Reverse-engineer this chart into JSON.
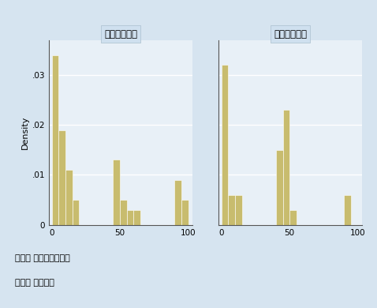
{
  "panel1_title": "直接被害なし",
  "panel2_title": "直接被害あり",
  "bar_color": "#c8bc6e",
  "background_color": "#d6e4f0",
  "plot_facecolor": "#e8f0f7",
  "title_facecolor": "#cfe0ef",
  "ylabel": "Density",
  "xlabel_note1": "横軸： 主観確率（％）",
  "xlabel_note2": "縦軸： 相対度数",
  "yticks": [
    0,
    0.01,
    0.02,
    0.03
  ],
  "ytick_labels": [
    "0",
    ".01",
    ".02",
    ".03"
  ],
  "xticks": [
    0,
    50,
    100
  ],
  "ylim": [
    0,
    0.037
  ],
  "xlim": [
    -2,
    103
  ],
  "bins": [
    0,
    5,
    10,
    15,
    20,
    25,
    30,
    35,
    40,
    45,
    50,
    55,
    60,
    65,
    70,
    75,
    80,
    85,
    90,
    95,
    100
  ],
  "panel1_heights": [
    0.034,
    0.019,
    0.011,
    0.005,
    0.0,
    0.0,
    0.0,
    0.0,
    0.0,
    0.013,
    0.005,
    0.003,
    0.003,
    0.0,
    0.0,
    0.0,
    0.0,
    0.0,
    0.009,
    0.005,
    0.0
  ],
  "panel2_heights": [
    0.032,
    0.006,
    0.006,
    0.0,
    0.0,
    0.0,
    0.0,
    0.0,
    0.015,
    0.023,
    0.003,
    0.0,
    0.0,
    0.0,
    0.0,
    0.0,
    0.0,
    0.0,
    0.006,
    0.0,
    0.0
  ]
}
